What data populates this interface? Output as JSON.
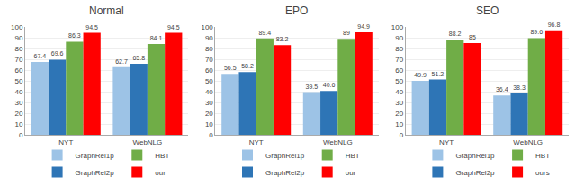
{
  "chart_data": [
    {
      "type": "bar",
      "title": "Normal",
      "categories": [
        "NYT",
        "WebNLG"
      ],
      "series": [
        {
          "name": "GraphRel1p",
          "color": "#9DC3E6",
          "values": [
            67.4,
            62.7
          ]
        },
        {
          "name": "GraphRel2p",
          "color": "#2E75B6",
          "values": [
            69.6,
            65.8
          ]
        },
        {
          "name": "HBT",
          "color": "#70AD47",
          "values": [
            86.3,
            84.1
          ]
        },
        {
          "name": "our",
          "color": "#FF0000",
          "values": [
            94.5,
            94.5
          ]
        }
      ],
      "ylim": [
        0,
        100
      ],
      "yticks": [
        0,
        10,
        20,
        30,
        40,
        50,
        60,
        70,
        80,
        90,
        100
      ],
      "grid": true,
      "data_labels": true,
      "legend": "bottom"
    },
    {
      "type": "bar",
      "title": "EPO",
      "categories": [
        "NYT",
        "WebNLG"
      ],
      "series": [
        {
          "name": "GraphRel1p",
          "color": "#9DC3E6",
          "values": [
            56.5,
            39.5
          ]
        },
        {
          "name": "GraphRel2p",
          "color": "#2E75B6",
          "values": [
            58.2,
            40.6
          ]
        },
        {
          "name": "HBT",
          "color": "#70AD47",
          "values": [
            89.4,
            89
          ]
        },
        {
          "name": "our",
          "color": "#FF0000",
          "values": [
            83.2,
            94.9
          ]
        }
      ],
      "ylim": [
        0,
        100
      ],
      "yticks": [
        0,
        10,
        20,
        30,
        40,
        50,
        60,
        70,
        80,
        90,
        100
      ],
      "grid": true,
      "data_labels": true,
      "legend": "bottom"
    },
    {
      "type": "bar",
      "title": "SEO",
      "categories": [
        "NYT",
        "WebNLG"
      ],
      "series": [
        {
          "name": "GraphRel1p",
          "color": "#9DC3E6",
          "values": [
            49.9,
            36.4
          ]
        },
        {
          "name": "GraphRel2p",
          "color": "#2E75B6",
          "values": [
            51.2,
            38.3
          ]
        },
        {
          "name": "HBT",
          "color": "#70AD47",
          "values": [
            88.2,
            89.6
          ]
        },
        {
          "name": "ours",
          "color": "#FF0000",
          "values": [
            85,
            96.8
          ]
        }
      ],
      "ylim": [
        0,
        100
      ],
      "yticks": [
        0,
        10,
        20,
        30,
        40,
        50,
        60,
        70,
        80,
        90,
        100
      ],
      "grid": true,
      "data_labels": true,
      "legend": "bottom"
    }
  ]
}
